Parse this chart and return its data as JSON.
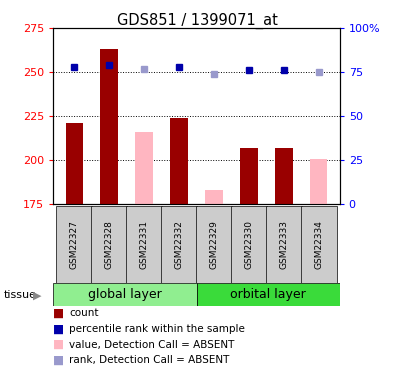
{
  "title": "GDS851 / 1399071_at",
  "samples": [
    "GSM22327",
    "GSM22328",
    "GSM22331",
    "GSM22332",
    "GSM22329",
    "GSM22330",
    "GSM22333",
    "GSM22334"
  ],
  "group1_name": "global layer",
  "group2_name": "orbital layer",
  "group1_color": "#90EE90",
  "group2_color": "#3ADB3A",
  "bar_values": [
    221,
    263,
    null,
    224,
    null,
    207,
    207,
    null
  ],
  "bar_absent_values": [
    null,
    null,
    216,
    null,
    183,
    null,
    null,
    201
  ],
  "bar_color_present": "#990000",
  "bar_color_absent": "#FFB6C1",
  "rank_present": [
    78,
    79,
    null,
    78,
    null,
    76,
    76,
    null
  ],
  "rank_absent": [
    null,
    null,
    77,
    null,
    74,
    null,
    null,
    75
  ],
  "rank_color_present": "#0000AA",
  "rank_color_absent": "#9999CC",
  "ylim": [
    175,
    275
  ],
  "yticks_left": [
    175,
    200,
    225,
    250,
    275
  ],
  "yticks_right": [
    0,
    25,
    50,
    75,
    100
  ],
  "bar_width": 0.5,
  "tissue_label": "tissue",
  "legend_items": [
    {
      "label": "count",
      "color": "#990000"
    },
    {
      "label": "percentile rank within the sample",
      "color": "#0000AA"
    },
    {
      "label": "value, Detection Call = ABSENT",
      "color": "#FFB6C1"
    },
    {
      "label": "rank, Detection Call = ABSENT",
      "color": "#9999CC"
    }
  ]
}
